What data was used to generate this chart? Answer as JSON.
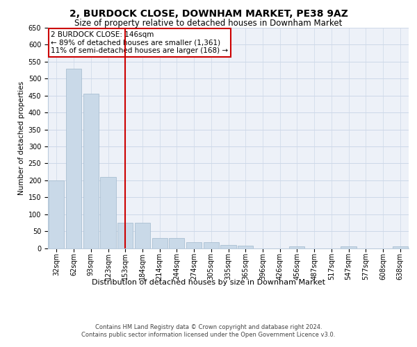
{
  "title": "2, BURDOCK CLOSE, DOWNHAM MARKET, PE38 9AZ",
  "subtitle": "Size of property relative to detached houses in Downham Market",
  "xlabel": "Distribution of detached houses by size in Downham Market",
  "ylabel": "Number of detached properties",
  "bins": [
    "32sqm",
    "62sqm",
    "93sqm",
    "123sqm",
    "153sqm",
    "184sqm",
    "214sqm",
    "244sqm",
    "274sqm",
    "305sqm",
    "335sqm",
    "365sqm",
    "396sqm",
    "426sqm",
    "456sqm",
    "487sqm",
    "517sqm",
    "547sqm",
    "577sqm",
    "608sqm",
    "638sqm"
  ],
  "bar_values": [
    200,
    530,
    455,
    210,
    75,
    75,
    30,
    30,
    18,
    18,
    10,
    8,
    0,
    0,
    5,
    0,
    0,
    5,
    0,
    0,
    5
  ],
  "bar_color": "#c9d9e8",
  "bar_edgecolor": "#a0b8cc",
  "vline_x_index": 4,
  "vline_color": "#cc0000",
  "annotation_text": "2 BURDOCK CLOSE: 146sqm\n← 89% of detached houses are smaller (1,361)\n11% of semi-detached houses are larger (168) →",
  "annotation_box_color": "#ffffff",
  "annotation_box_edgecolor": "#cc0000",
  "ylim": [
    0,
    650
  ],
  "yticks": [
    0,
    50,
    100,
    150,
    200,
    250,
    300,
    350,
    400,
    450,
    500,
    550,
    600,
    650
  ],
  "grid_color": "#cdd8e8",
  "footer": "Contains HM Land Registry data © Crown copyright and database right 2024.\nContains public sector information licensed under the Open Government Licence v3.0.",
  "bg_color": "#edf1f8",
  "title_fontsize": 10,
  "subtitle_fontsize": 8.5,
  "footer_fontsize": 6,
  "ylabel_fontsize": 7.5,
  "xlabel_fontsize": 8,
  "tick_fontsize": 7,
  "annot_fontsize": 7.5
}
